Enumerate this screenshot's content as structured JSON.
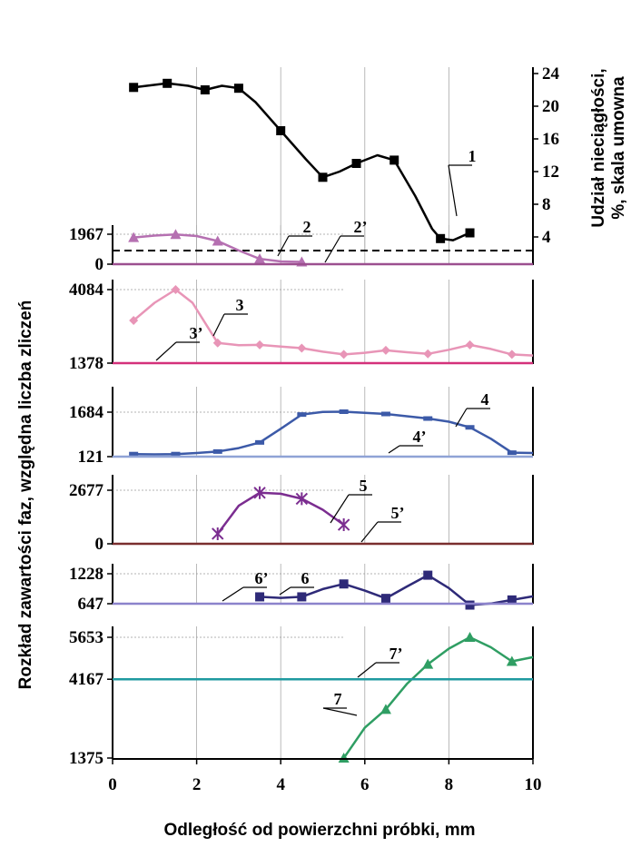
{
  "chart_data": {
    "type": "line",
    "xlabel": "Odległość od powierzchni próbki,  mm",
    "ylabel_left": "Rozkład zawartości faz, względna liczba zliczeń",
    "ylabel_right_line1": "Udział nieciągłości,",
    "ylabel_right_line2": "%,  skala umowna",
    "x_ticks": [
      "0",
      "2",
      "4",
      "6",
      "8",
      "10"
    ],
    "xlim": [
      0,
      10
    ],
    "grid_x": true,
    "panels": [
      {
        "id": "p1",
        "ylim": [
          2,
          25
        ],
        "y_ticks": [
          4,
          8,
          12,
          16,
          20,
          24
        ],
        "y_tick_labels": [
          "4",
          "8",
          "12",
          "16",
          "20",
          "24"
        ],
        "axis_side": "right",
        "series": [
          {
            "label": "1",
            "color": "#000000",
            "marker": "square",
            "points": [
              [
                0.5,
                22.3
              ],
              [
                1.3,
                22.8
              ],
              [
                2.2,
                22.0
              ],
              [
                3.0,
                22.2
              ],
              [
                4.0,
                17.0
              ],
              [
                5.0,
                11.3
              ],
              [
                5.8,
                13.0
              ],
              [
                6.7,
                13.4
              ],
              [
                7.8,
                3.8
              ],
              [
                8.5,
                4.5
              ]
            ],
            "curve": [
              [
                0.5,
                22.3
              ],
              [
                1.3,
                22.8
              ],
              [
                1.8,
                22.5
              ],
              [
                2.2,
                22.0
              ],
              [
                2.6,
                22.5
              ],
              [
                3.0,
                22.2
              ],
              [
                3.4,
                20.5
              ],
              [
                4.0,
                17.0
              ],
              [
                4.6,
                13.5
              ],
              [
                5.0,
                11.3
              ],
              [
                5.4,
                12.0
              ],
              [
                5.8,
                13.0
              ],
              [
                6.3,
                14.0
              ],
              [
                6.7,
                13.4
              ],
              [
                7.2,
                9.0
              ],
              [
                7.6,
                5.0
              ],
              [
                7.8,
                3.8
              ],
              [
                8.1,
                3.6
              ],
              [
                8.5,
                4.5
              ]
            ]
          }
        ]
      },
      {
        "id": "p2",
        "ylim": [
          0,
          2200
        ],
        "y_ticks": [
          0,
          1967
        ],
        "y_tick_labels": [
          "0",
          "1967"
        ],
        "series": [
          {
            "label": "2",
            "color": "#b570b1",
            "marker": "triangle",
            "points": [
              [
                0.5,
                1750
              ],
              [
                1.5,
                1950
              ],
              [
                2.5,
                1520
              ],
              [
                3.5,
                350
              ],
              [
                4.5,
                150
              ]
            ],
            "curve": [
              [
                0.5,
                1750
              ],
              [
                1.0,
                1880
              ],
              [
                1.5,
                1950
              ],
              [
                2.0,
                1850
              ],
              [
                2.5,
                1520
              ],
              [
                3.0,
                900
              ],
              [
                3.5,
                350
              ],
              [
                4.0,
                180
              ],
              [
                4.5,
                150
              ]
            ]
          },
          {
            "label": "2’",
            "color": "#9c4f8f",
            "baseline": 0
          }
        ]
      },
      {
        "id": "p3",
        "ylim": [
          1378,
          4200
        ],
        "y_ticks": [
          1378,
          4084
        ],
        "y_tick_labels": [
          "1378",
          "4084"
        ],
        "series": [
          {
            "label": "3",
            "color": "#e895b7",
            "marker": "diamond",
            "points": [
              [
                0.5,
                2950
              ],
              [
                1.5,
                4084
              ],
              [
                2.5,
                2120
              ],
              [
                3.5,
                2050
              ],
              [
                4.5,
                1930
              ],
              [
                5.5,
                1700
              ],
              [
                6.5,
                1850
              ],
              [
                7.5,
                1720
              ],
              [
                8.5,
                2050
              ],
              [
                9.5,
                1700
              ]
            ],
            "curve": [
              [
                0.5,
                2950
              ],
              [
                1.0,
                3600
              ],
              [
                1.5,
                4084
              ],
              [
                1.9,
                3600
              ],
              [
                2.5,
                2120
              ],
              [
                3.0,
                2040
              ],
              [
                3.5,
                2050
              ],
              [
                4.0,
                1990
              ],
              [
                4.5,
                1930
              ],
              [
                5.0,
                1800
              ],
              [
                5.5,
                1700
              ],
              [
                6.0,
                1760
              ],
              [
                6.5,
                1850
              ],
              [
                7.0,
                1780
              ],
              [
                7.5,
                1720
              ],
              [
                8.0,
                1870
              ],
              [
                8.5,
                2050
              ],
              [
                9.0,
                1900
              ],
              [
                9.5,
                1700
              ],
              [
                10.0,
                1660
              ]
            ]
          },
          {
            "label": "3’",
            "color": "#d4317b",
            "baseline": 1378
          }
        ]
      },
      {
        "id": "p4",
        "ylim": [
          121,
          1800
        ],
        "y_ticks": [
          121,
          1684
        ],
        "y_tick_labels": [
          "121",
          "1684"
        ],
        "series": [
          {
            "label": "4",
            "color": "#3c5aa8",
            "marker": "dash",
            "points": [
              [
                0.5,
                210
              ],
              [
                1.5,
                210
              ],
              [
                2.5,
                300
              ],
              [
                3.5,
                620
              ],
              [
                4.5,
                1600
              ],
              [
                5.5,
                1700
              ],
              [
                6.5,
                1620
              ],
              [
                7.5,
                1460
              ],
              [
                8.5,
                1150
              ],
              [
                9.5,
                260
              ]
            ],
            "curve": [
              [
                0.5,
                210
              ],
              [
                1.0,
                200
              ],
              [
                1.5,
                210
              ],
              [
                2.0,
                250
              ],
              [
                2.5,
                300
              ],
              [
                3.0,
                420
              ],
              [
                3.5,
                620
              ],
              [
                4.0,
                1100
              ],
              [
                4.5,
                1600
              ],
              [
                5.0,
                1690
              ],
              [
                5.5,
                1700
              ],
              [
                6.0,
                1660
              ],
              [
                6.5,
                1620
              ],
              [
                7.0,
                1540
              ],
              [
                7.5,
                1460
              ],
              [
                8.0,
                1350
              ],
              [
                8.5,
                1150
              ],
              [
                9.0,
                750
              ],
              [
                9.5,
                260
              ],
              [
                10.0,
                250
              ]
            ]
          },
          {
            "label": "4’",
            "color": "#8fa3d6",
            "baseline": 121
          }
        ]
      },
      {
        "id": "p5",
        "ylim": [
          0,
          3000
        ],
        "y_ticks": [
          0,
          2677
        ],
        "y_tick_labels": [
          "0",
          "2677"
        ],
        "series": [
          {
            "label": "5",
            "color": "#7b2d90",
            "marker": "asterisk",
            "points": [
              [
                2.5,
                500
              ],
              [
                3.5,
                2550
              ],
              [
                4.5,
                2250
              ],
              [
                5.5,
                950
              ]
            ],
            "curve": [
              [
                2.5,
                500
              ],
              [
                3.0,
                1900
              ],
              [
                3.5,
                2550
              ],
              [
                4.0,
                2500
              ],
              [
                4.5,
                2250
              ],
              [
                5.0,
                1700
              ],
              [
                5.5,
                950
              ]
            ]
          },
          {
            "label": "5’",
            "color": "#7a2e2e",
            "baseline": 0
          }
        ]
      },
      {
        "id": "p6",
        "ylim": [
          500,
          1350
        ],
        "y_ticks": [
          647,
          1228
        ],
        "y_tick_labels": [
          "647",
          "1228"
        ],
        "series": [
          {
            "label": "6",
            "color": "#2e2a78",
            "marker": "square",
            "points": [
              [
                3.5,
                780
              ],
              [
                4.5,
                780
              ],
              [
                5.5,
                1030
              ],
              [
                6.5,
                750
              ],
              [
                7.5,
                1200
              ],
              [
                8.5,
                620
              ],
              [
                9.5,
                720
              ]
            ],
            "curve": [
              [
                3.5,
                780
              ],
              [
                4.0,
                760
              ],
              [
                4.5,
                780
              ],
              [
                5.0,
                930
              ],
              [
                5.5,
                1030
              ],
              [
                6.0,
                900
              ],
              [
                6.5,
                750
              ],
              [
                7.0,
                980
              ],
              [
                7.5,
                1200
              ],
              [
                8.0,
                950
              ],
              [
                8.5,
                620
              ],
              [
                9.0,
                650
              ],
              [
                9.5,
                720
              ],
              [
                10.0,
                790
              ]
            ]
          },
          {
            "label": "6’",
            "color": "#8c83cc",
            "baseline": 647
          }
        ]
      },
      {
        "id": "p7",
        "ylim": [
          1200,
          6000
        ],
        "y_ticks": [
          1375,
          4167,
          5653
        ],
        "y_tick_labels": [
          "1375",
          "4167",
          "5653"
        ],
        "series": [
          {
            "label": "7",
            "color": "#2f9e63",
            "marker": "triangle",
            "points": [
              [
                5.5,
                1375
              ],
              [
                6.5,
                3100
              ],
              [
                7.5,
                4700
              ],
              [
                8.5,
                5653
              ],
              [
                9.5,
                4800
              ]
            ],
            "curve": [
              [
                5.5,
                1375
              ],
              [
                6.0,
                2450
              ],
              [
                6.5,
                3100
              ],
              [
                7.0,
                4000
              ],
              [
                7.5,
                4700
              ],
              [
                8.0,
                5250
              ],
              [
                8.5,
                5653
              ],
              [
                9.0,
                5300
              ],
              [
                9.5,
                4800
              ],
              [
                10.0,
                4950
              ]
            ]
          },
          {
            "label": "7’",
            "color": "#1f9aa0",
            "baseline": 4167
          }
        ]
      }
    ]
  }
}
